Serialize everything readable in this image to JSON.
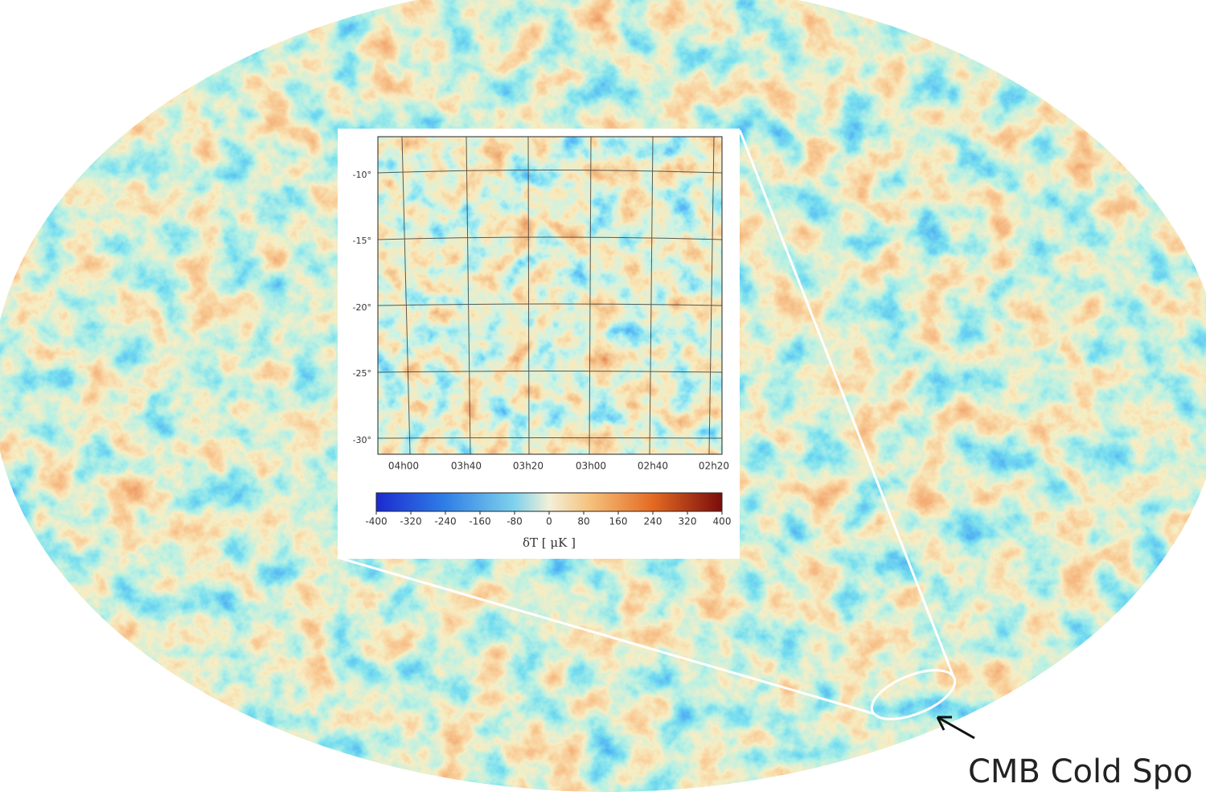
{
  "inset": {
    "y_labels": [
      "-10°",
      "-15°",
      "-20°",
      "-25°",
      "-30°"
    ],
    "x_labels": [
      "04h00",
      "03h40",
      "03h20",
      "03h00",
      "02h40",
      "02h20"
    ],
    "colorbar_ticks": [
      -400,
      -320,
      -240,
      -160,
      -80,
      0,
      80,
      160,
      240,
      320,
      400
    ],
    "colorbar_label": "δT [ μK ]"
  },
  "caption": "CMB Cold Spo"
}
